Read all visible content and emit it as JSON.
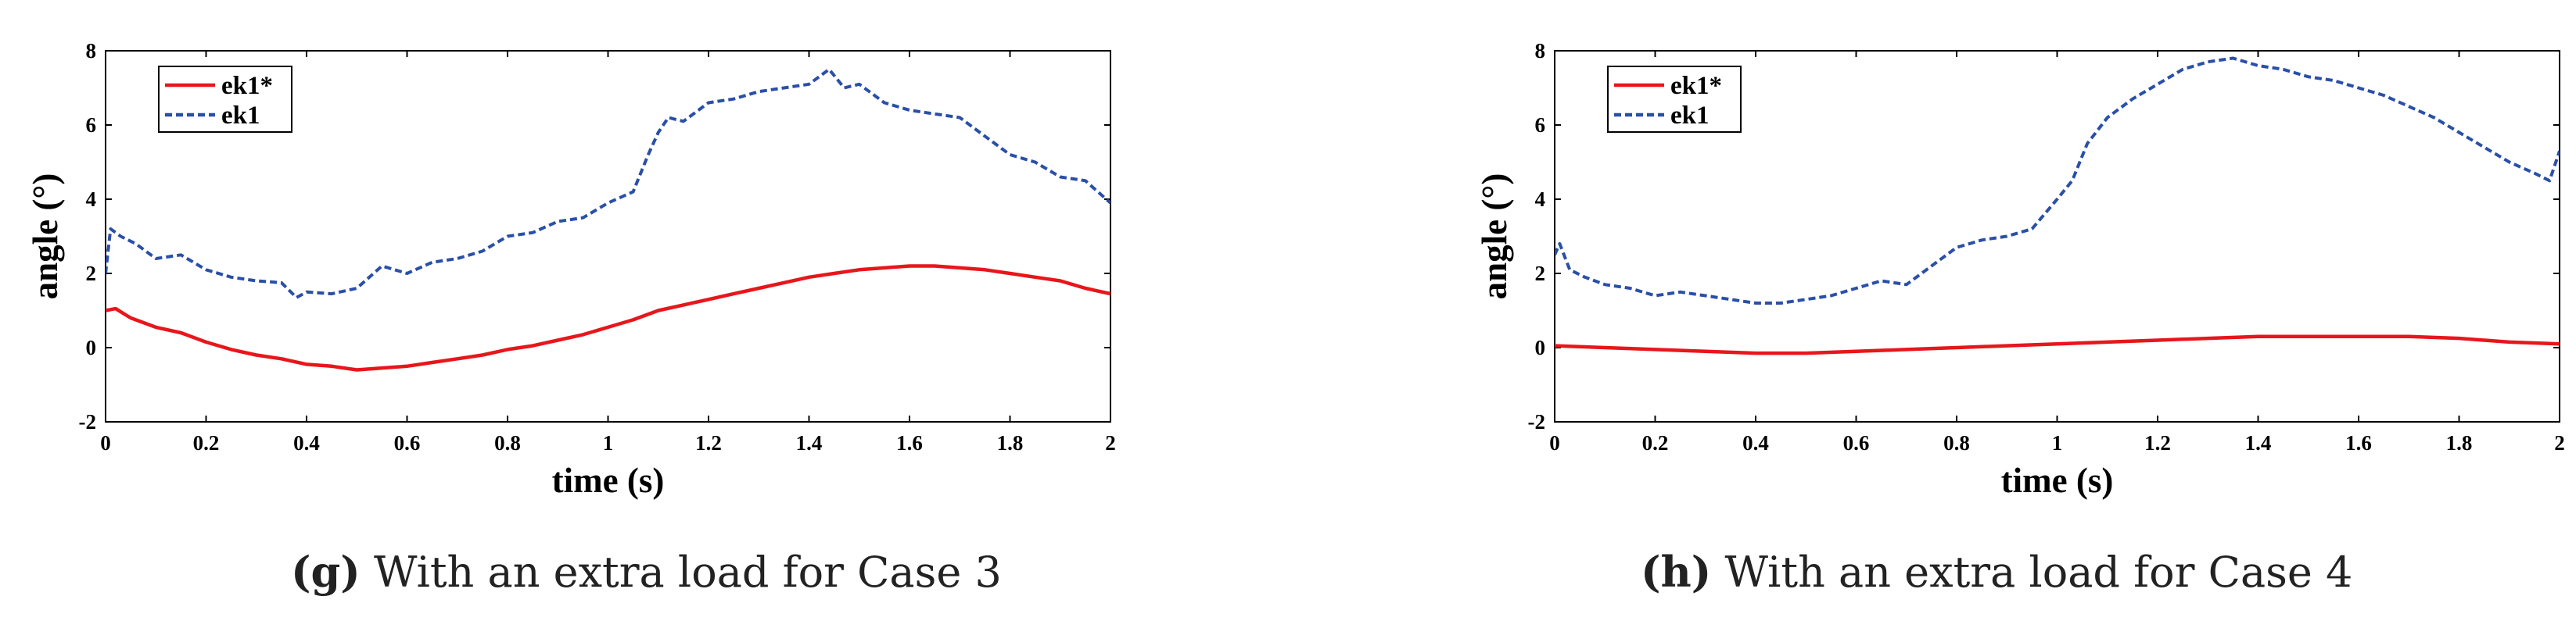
{
  "chart_data": [
    {
      "type": "line",
      "panel": "g",
      "caption_letter": "(g)",
      "caption_text": "With an extra load for Case 3",
      "xlabel": "time (s)",
      "ylabel": "angle (°)",
      "xlim": [
        0,
        2
      ],
      "ylim": [
        -2,
        8
      ],
      "xticks": [
        "0",
        "0.2",
        "0.4",
        "0.6",
        "0.8",
        "1",
        "1.2",
        "1.4",
        "1.6",
        "1.8",
        "2"
      ],
      "yticks": [
        "-2",
        "0",
        "2",
        "4",
        "6",
        "8"
      ],
      "grid": false,
      "legend_position": "top-left",
      "series": [
        {
          "name": "ek1*",
          "color": "#e8161b",
          "style": "solid",
          "x": [
            0,
            0.02,
            0.05,
            0.1,
            0.15,
            0.2,
            0.25,
            0.3,
            0.35,
            0.4,
            0.45,
            0.5,
            0.55,
            0.6,
            0.65,
            0.7,
            0.75,
            0.8,
            0.85,
            0.9,
            0.95,
            1.0,
            1.05,
            1.1,
            1.15,
            1.2,
            1.25,
            1.3,
            1.35,
            1.4,
            1.45,
            1.5,
            1.55,
            1.6,
            1.65,
            1.7,
            1.75,
            1.8,
            1.85,
            1.9,
            1.95,
            2.0
          ],
          "y": [
            1.0,
            1.05,
            0.8,
            0.55,
            0.4,
            0.15,
            -0.05,
            -0.2,
            -0.3,
            -0.45,
            -0.5,
            -0.6,
            -0.55,
            -0.5,
            -0.4,
            -0.3,
            -0.2,
            -0.05,
            0.05,
            0.2,
            0.35,
            0.55,
            0.75,
            1.0,
            1.15,
            1.3,
            1.45,
            1.6,
            1.75,
            1.9,
            2.0,
            2.1,
            2.15,
            2.2,
            2.2,
            2.15,
            2.1,
            2.0,
            1.9,
            1.8,
            1.6,
            1.45
          ]
        },
        {
          "name": "ek1",
          "color": "#2a4fa8",
          "style": "dashed",
          "x": [
            0,
            0.01,
            0.03,
            0.06,
            0.1,
            0.15,
            0.2,
            0.25,
            0.3,
            0.35,
            0.38,
            0.4,
            0.45,
            0.5,
            0.55,
            0.6,
            0.65,
            0.7,
            0.75,
            0.8,
            0.85,
            0.9,
            0.95,
            1.0,
            1.05,
            1.08,
            1.1,
            1.12,
            1.15,
            1.2,
            1.25,
            1.3,
            1.35,
            1.4,
            1.44,
            1.47,
            1.5,
            1.55,
            1.6,
            1.65,
            1.7,
            1.75,
            1.8,
            1.85,
            1.9,
            1.95,
            2.0
          ],
          "y": [
            2.0,
            3.2,
            3.0,
            2.8,
            2.4,
            2.5,
            2.1,
            1.9,
            1.8,
            1.75,
            1.35,
            1.5,
            1.45,
            1.6,
            2.2,
            2.0,
            2.3,
            2.4,
            2.6,
            3.0,
            3.1,
            3.4,
            3.5,
            3.9,
            4.2,
            5.2,
            5.8,
            6.2,
            6.1,
            6.6,
            6.7,
            6.9,
            7.0,
            7.1,
            7.5,
            7.0,
            7.1,
            6.6,
            6.4,
            6.3,
            6.2,
            5.7,
            5.2,
            5.0,
            4.6,
            4.5,
            3.9
          ]
        }
      ]
    },
    {
      "type": "line",
      "panel": "h",
      "caption_letter": "(h)",
      "caption_text": "With an extra load for Case 4",
      "xlabel": "time (s)",
      "ylabel": "angle (°)",
      "xlim": [
        0,
        2
      ],
      "ylim": [
        -2,
        8
      ],
      "xticks": [
        "0",
        "0.2",
        "0.4",
        "0.6",
        "0.8",
        "1",
        "1.2",
        "1.4",
        "1.6",
        "1.8",
        "2"
      ],
      "yticks": [
        "-2",
        "0",
        "2",
        "4",
        "6",
        "8"
      ],
      "grid": false,
      "legend_position": "top-left",
      "series": [
        {
          "name": "ek1*",
          "color": "#e8161b",
          "style": "solid",
          "x": [
            0,
            0.1,
            0.2,
            0.3,
            0.4,
            0.5,
            0.6,
            0.7,
            0.8,
            0.9,
            1.0,
            1.1,
            1.2,
            1.3,
            1.4,
            1.5,
            1.6,
            1.7,
            1.8,
            1.9,
            2.0
          ],
          "y": [
            0.05,
            0.0,
            -0.05,
            -0.1,
            -0.15,
            -0.15,
            -0.1,
            -0.05,
            0.0,
            0.05,
            0.1,
            0.15,
            0.2,
            0.25,
            0.3,
            0.3,
            0.3,
            0.3,
            0.25,
            0.15,
            0.1
          ]
        },
        {
          "name": "ek1",
          "color": "#2a4fa8",
          "style": "dashed",
          "x": [
            0,
            0.01,
            0.03,
            0.06,
            0.1,
            0.15,
            0.2,
            0.25,
            0.3,
            0.35,
            0.4,
            0.45,
            0.5,
            0.55,
            0.6,
            0.65,
            0.7,
            0.75,
            0.8,
            0.85,
            0.9,
            0.95,
            1.0,
            1.03,
            1.06,
            1.1,
            1.15,
            1.2,
            1.25,
            1.3,
            1.35,
            1.4,
            1.45,
            1.5,
            1.55,
            1.6,
            1.65,
            1.7,
            1.75,
            1.8,
            1.85,
            1.9,
            1.95,
            1.98,
            2.0
          ],
          "y": [
            2.5,
            2.8,
            2.1,
            1.9,
            1.7,
            1.6,
            1.4,
            1.5,
            1.4,
            1.3,
            1.2,
            1.2,
            1.3,
            1.4,
            1.6,
            1.8,
            1.7,
            2.2,
            2.7,
            2.9,
            3.0,
            3.2,
            4.0,
            4.5,
            5.5,
            6.2,
            6.7,
            7.1,
            7.5,
            7.7,
            7.8,
            7.6,
            7.5,
            7.3,
            7.2,
            7.0,
            6.8,
            6.5,
            6.2,
            5.8,
            5.4,
            5.0,
            4.7,
            4.5,
            5.3
          ]
        }
      ]
    }
  ]
}
